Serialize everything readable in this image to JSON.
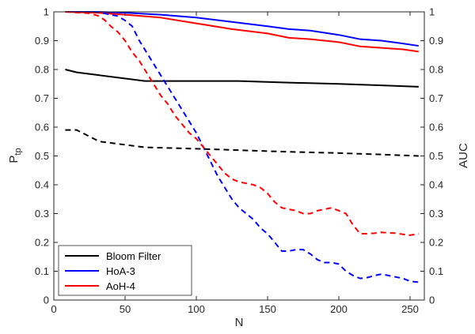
{
  "chart_data": {
    "type": "line",
    "xlabel": "N",
    "ylabel_left": "P",
    "ylabel_left_subscript": "tp",
    "ylabel_right": "AUC",
    "xlim": [
      0,
      260
    ],
    "ylim": [
      0,
      1
    ],
    "xticks": [
      0,
      50,
      100,
      150,
      200,
      250
    ],
    "yticks": [
      0,
      0.1,
      0.2,
      0.3,
      0.4,
      0.5,
      0.6,
      0.7,
      0.8,
      0.9,
      1
    ],
    "xtick_labels": [
      "0",
      "50",
      "100",
      "150",
      "200",
      "250"
    ],
    "ytick_labels": [
      "0",
      "0.1",
      "0.2",
      "0.3",
      "0.4",
      "0.5",
      "0.6",
      "0.7",
      "0.8",
      "0.9",
      "1"
    ],
    "grid": false,
    "legend": {
      "position": "bottom-left",
      "entries": [
        {
          "name": "Bloom Filter",
          "color": "#000000"
        },
        {
          "name": "HoA-3",
          "color": "#0000ff"
        },
        {
          "name": "AoH-4",
          "color": "#ff0000"
        }
      ]
    },
    "series": [
      {
        "name": "Bloom Filter",
        "color": "#000000",
        "style": "solid",
        "axis": "left",
        "x": [
          8,
          16,
          32,
          64,
          100,
          130,
          160,
          200,
          230,
          256
        ],
        "y": [
          0.8,
          0.79,
          0.78,
          0.76,
          0.76,
          0.76,
          0.755,
          0.75,
          0.745,
          0.74
        ]
      },
      {
        "name": "HoA-3",
        "color": "#0000ff",
        "style": "solid",
        "axis": "left",
        "x": [
          8,
          30,
          50,
          75,
          100,
          125,
          150,
          165,
          180,
          200,
          215,
          230,
          245,
          256
        ],
        "y": [
          1.0,
          1.0,
          0.997,
          0.99,
          0.98,
          0.965,
          0.95,
          0.94,
          0.935,
          0.92,
          0.905,
          0.9,
          0.89,
          0.882
        ]
      },
      {
        "name": "AoH-4",
        "color": "#ff0000",
        "style": "solid",
        "axis": "left",
        "x": [
          8,
          30,
          50,
          75,
          100,
          125,
          150,
          165,
          180,
          200,
          215,
          230,
          245,
          256
        ],
        "y": [
          1.0,
          0.997,
          0.99,
          0.98,
          0.96,
          0.94,
          0.925,
          0.91,
          0.905,
          0.895,
          0.88,
          0.875,
          0.87,
          0.862
        ]
      },
      {
        "name": "Bloom Filter",
        "color": "#000000",
        "style": "dashed",
        "axis": "right",
        "x": [
          8,
          16,
          32,
          64,
          100,
          130,
          160,
          200,
          230,
          256
        ],
        "y": [
          0.59,
          0.59,
          0.55,
          0.53,
          0.525,
          0.52,
          0.515,
          0.51,
          0.505,
          0.5
        ]
      },
      {
        "name": "HoA-3",
        "color": "#0000ff",
        "style": "dashed",
        "axis": "right",
        "x": [
          8,
          30,
          40,
          45,
          50,
          55,
          60,
          65,
          70,
          75,
          80,
          85,
          90,
          95,
          100,
          105,
          110,
          115,
          120,
          125,
          130,
          135,
          140,
          145,
          150,
          155,
          160,
          165,
          170,
          175,
          180,
          185,
          190,
          195,
          200,
          205,
          210,
          215,
          220,
          225,
          230,
          235,
          240,
          245,
          250,
          256
        ],
        "y": [
          1.0,
          1.0,
          0.99,
          0.985,
          0.97,
          0.95,
          0.9,
          0.86,
          0.82,
          0.78,
          0.74,
          0.7,
          0.66,
          0.62,
          0.58,
          0.53,
          0.48,
          0.43,
          0.39,
          0.35,
          0.32,
          0.3,
          0.28,
          0.25,
          0.23,
          0.2,
          0.17,
          0.17,
          0.175,
          0.175,
          0.16,
          0.14,
          0.13,
          0.13,
          0.125,
          0.1,
          0.085,
          0.075,
          0.078,
          0.085,
          0.09,
          0.085,
          0.08,
          0.075,
          0.065,
          0.062
        ]
      },
      {
        "name": "AoH-4",
        "color": "#ff0000",
        "style": "dashed",
        "axis": "right",
        "x": [
          8,
          25,
          32,
          36,
          40,
          45,
          50,
          55,
          60,
          65,
          70,
          75,
          80,
          85,
          90,
          95,
          100,
          105,
          110,
          115,
          120,
          125,
          130,
          135,
          140,
          145,
          150,
          155,
          160,
          165,
          170,
          175,
          180,
          185,
          190,
          195,
          200,
          205,
          210,
          215,
          220,
          225,
          230,
          235,
          240,
          245,
          250,
          256
        ],
        "y": [
          1.0,
          0.995,
          0.985,
          0.97,
          0.95,
          0.93,
          0.9,
          0.86,
          0.83,
          0.79,
          0.75,
          0.71,
          0.68,
          0.64,
          0.61,
          0.58,
          0.56,
          0.53,
          0.5,
          0.47,
          0.44,
          0.42,
          0.41,
          0.405,
          0.4,
          0.39,
          0.37,
          0.34,
          0.32,
          0.315,
          0.31,
          0.3,
          0.3,
          0.31,
          0.315,
          0.32,
          0.31,
          0.3,
          0.26,
          0.23,
          0.23,
          0.232,
          0.235,
          0.233,
          0.232,
          0.228,
          0.225,
          0.23
        ]
      }
    ]
  }
}
